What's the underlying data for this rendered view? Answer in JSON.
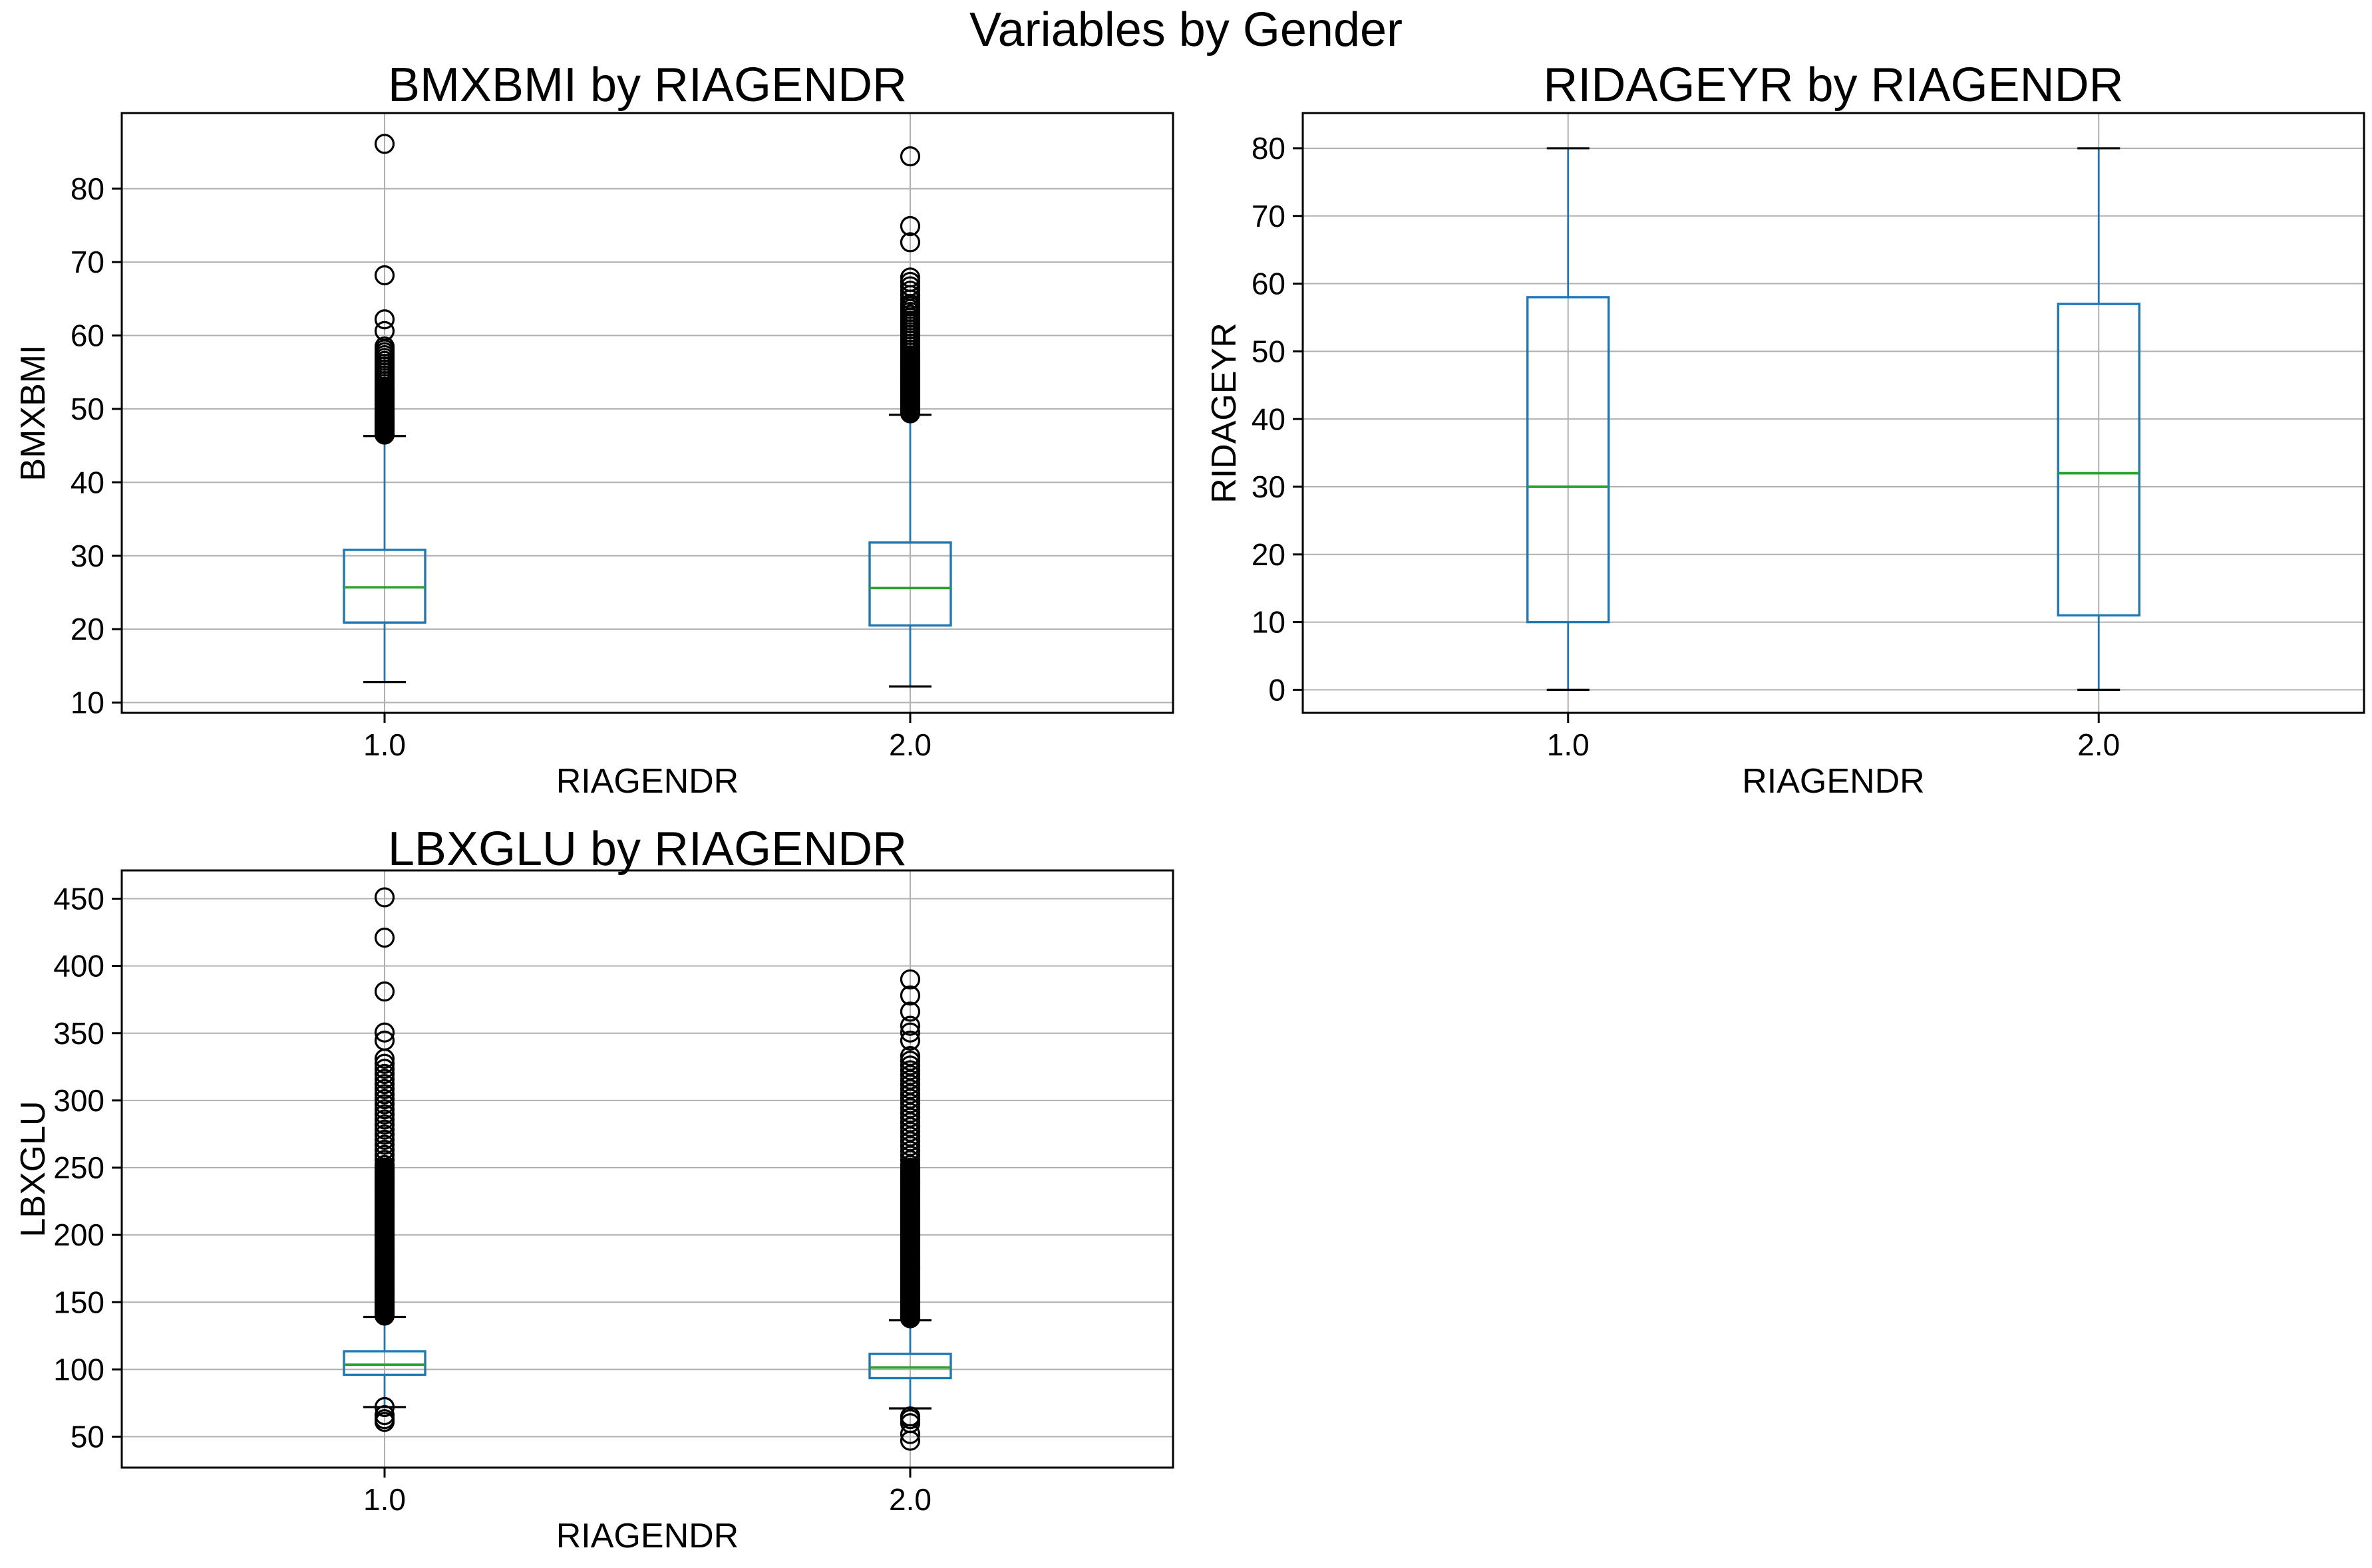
{
  "figure": {
    "suptitle": "Variables by Gender"
  },
  "colors": {
    "box": "#1f77b4",
    "whisker": "#1f77b4",
    "median": "#2ca02c",
    "cap": "#000000",
    "outlier": "#000000",
    "grid": "#b0b0b0",
    "axis": "#000000",
    "text": "#000000",
    "background": "#ffffff"
  },
  "chart_data": [
    {
      "type": "boxplot",
      "title": "BMXBMI by RIAGENDR",
      "xlabel": "RIAGENDR",
      "ylabel": "BMXBMI",
      "categories": [
        "1.0",
        "2.0"
      ],
      "ylim": [
        8.6,
        90.3
      ],
      "yticks": [
        10,
        20,
        30,
        40,
        50,
        60,
        70,
        80
      ],
      "grid": true,
      "legend": "none",
      "boxes": [
        {
          "label": "1.0",
          "whislo": 12.8,
          "q1": 20.9,
          "med": 25.7,
          "q3": 30.8,
          "whishi": 46.3,
          "outliers": [
            60.6,
            62.2,
            68.2,
            86.1
          ],
          "outlier_bands": [
            {
              "from": 46.5,
              "to": 53.0,
              "count": 40
            },
            {
              "from": 53.4,
              "to": 58.5,
              "count": 14
            }
          ]
        },
        {
          "label": "2.0",
          "whislo": 12.2,
          "q1": 20.5,
          "med": 25.6,
          "q3": 31.8,
          "whishi": 49.2,
          "outliers": [
            72.7,
            74.9,
            84.4
          ],
          "outlier_bands": [
            {
              "from": 49.4,
              "to": 57.0,
              "count": 46
            },
            {
              "from": 57.3,
              "to": 64.0,
              "count": 18
            },
            {
              "from": 64.3,
              "to": 67.9,
              "count": 7
            }
          ]
        }
      ]
    },
    {
      "type": "boxplot",
      "title": "RIDAGEYR by RIAGENDR",
      "xlabel": "RIAGENDR",
      "ylabel": "RIDAGEYR",
      "categories": [
        "1.0",
        "2.0"
      ],
      "ylim": [
        -3.4,
        85.2
      ],
      "yticks": [
        0,
        10,
        20,
        30,
        40,
        50,
        60,
        70,
        80
      ],
      "grid": true,
      "legend": "none",
      "boxes": [
        {
          "label": "1.0",
          "whislo": 0,
          "q1": 10,
          "med": 30,
          "q3": 58,
          "whishi": 80,
          "outliers": [],
          "outlier_bands": []
        },
        {
          "label": "2.0",
          "whislo": 0,
          "q1": 11,
          "med": 32,
          "q3": 57,
          "whishi": 80,
          "outliers": [],
          "outlier_bands": []
        }
      ]
    },
    {
      "type": "boxplot",
      "title": "LBXGLU by RIAGENDR",
      "xlabel": "RIAGENDR",
      "ylabel": "LBXGLU",
      "categories": [
        "1.0",
        "2.0"
      ],
      "ylim": [
        27,
        471
      ],
      "yticks": [
        50,
        100,
        150,
        200,
        250,
        300,
        350,
        400,
        450
      ],
      "grid": true,
      "legend": "none",
      "boxes": [
        {
          "label": "1.0",
          "whislo": 72,
          "q1": 96,
          "med": 103.5,
          "q3": 113.5,
          "whishi": 139,
          "outliers": [
            61,
            63,
            66,
            72,
            344.5,
            350.5,
            381,
            421,
            451
          ],
          "outlier_bands": [
            {
              "from": 140,
              "to": 250,
              "count": 115
            },
            {
              "from": 252,
              "to": 331,
              "count": 22
            }
          ]
        },
        {
          "label": "2.0",
          "whislo": 71,
          "q1": 93.5,
          "med": 101.5,
          "q3": 111.5,
          "whishi": 136.5,
          "outliers": [
            47,
            52,
            60,
            63,
            65,
            344.5,
            350.5,
            355.5,
            366,
            378,
            390
          ],
          "outlier_bands": [
            {
              "from": 138,
              "to": 250,
              "count": 115
            },
            {
              "from": 252,
              "to": 333,
              "count": 24
            }
          ]
        }
      ]
    }
  ]
}
